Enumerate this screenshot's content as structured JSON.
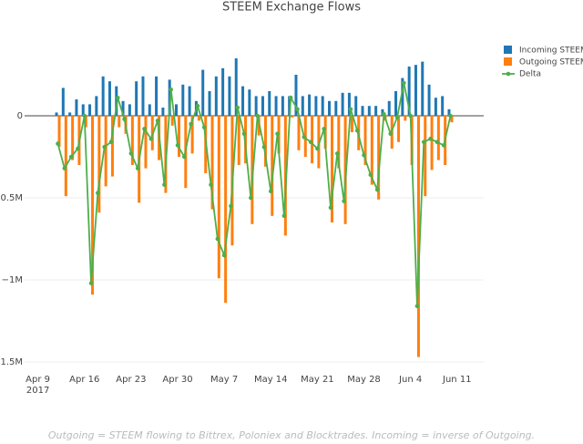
{
  "chart_data": {
    "type": "bar_line",
    "title": "STEEM Exchange Flows",
    "annotation": "Outgoing = STEEM flowing to Bittrex, Poloniex and Blocktrades. Incoming = inverse of Outgoing.",
    "x": [
      "2017-04-12",
      "2017-04-13",
      "2017-04-14",
      "2017-04-15",
      "2017-04-16",
      "2017-04-17",
      "2017-04-18",
      "2017-04-19",
      "2017-04-20",
      "2017-04-21",
      "2017-04-22",
      "2017-04-23",
      "2017-04-24",
      "2017-04-25",
      "2017-04-26",
      "2017-04-27",
      "2017-04-28",
      "2017-04-29",
      "2017-04-30",
      "2017-05-01",
      "2017-05-02",
      "2017-05-03",
      "2017-05-04",
      "2017-05-05",
      "2017-05-06",
      "2017-05-07",
      "2017-05-08",
      "2017-05-09",
      "2017-05-10",
      "2017-05-11",
      "2017-05-12",
      "2017-05-13",
      "2017-05-14",
      "2017-05-15",
      "2017-05-16",
      "2017-05-17",
      "2017-05-18",
      "2017-05-19",
      "2017-05-20",
      "2017-05-21",
      "2017-05-22",
      "2017-05-23",
      "2017-05-24",
      "2017-05-25",
      "2017-05-26",
      "2017-05-27",
      "2017-05-28",
      "2017-05-29",
      "2017-05-30",
      "2017-05-31",
      "2017-06-01",
      "2017-06-02",
      "2017-06-03",
      "2017-06-04",
      "2017-06-05",
      "2017-06-06",
      "2017-06-07",
      "2017-06-08",
      "2017-06-09",
      "2017-06-10"
    ],
    "series": [
      {
        "name": "Incoming STEEM",
        "kind": "bar",
        "color": "#1f77b4",
        "values": [
          20000,
          170000,
          20000,
          100000,
          70000,
          70000,
          120000,
          240000,
          210000,
          180000,
          90000,
          70000,
          210000,
          240000,
          70000,
          240000,
          50000,
          220000,
          70000,
          190000,
          180000,
          90000,
          280000,
          150000,
          240000,
          290000,
          240000,
          350000,
          180000,
          160000,
          120000,
          120000,
          150000,
          120000,
          120000,
          120000,
          250000,
          120000,
          130000,
          120000,
          120000,
          90000,
          90000,
          140000,
          140000,
          120000,
          60000,
          60000,
          60000,
          40000,
          90000,
          150000,
          230000,
          300000,
          310000,
          330000,
          190000,
          110000,
          120000,
          40000
        ]
      },
      {
        "name": "Outgoing STEEM",
        "kind": "bar",
        "color": "#ff7f0e",
        "values": [
          -190000,
          -490000,
          -270000,
          -300000,
          -70000,
          -1090000,
          -590000,
          -430000,
          -370000,
          -70000,
          -110000,
          -300000,
          -530000,
          -320000,
          -210000,
          -270000,
          -470000,
          -60000,
          -250000,
          -440000,
          -230000,
          -30000,
          -350000,
          -570000,
          -990000,
          -1140000,
          -790000,
          -300000,
          -290000,
          -660000,
          -120000,
          -310000,
          -610000,
          -230000,
          -730000,
          -10000,
          -210000,
          -250000,
          -290000,
          -320000,
          -200000,
          -650000,
          -320000,
          -660000,
          -100000,
          -210000,
          -300000,
          -420000,
          -510000,
          -30000,
          -200000,
          -160000,
          -30000,
          -300000,
          -1470000,
          -490000,
          -330000,
          -270000,
          -300000,
          -40000
        ]
      },
      {
        "name": "Delta",
        "kind": "line",
        "color": "#4daf4a",
        "values": [
          -170000,
          -320000,
          -250000,
          -200000,
          0,
          -1020000,
          -470000,
          -190000,
          -160000,
          110000,
          -20000,
          -230000,
          -320000,
          -80000,
          -140000,
          -30000,
          -420000,
          160000,
          -180000,
          -250000,
          -50000,
          60000,
          -70000,
          -420000,
          -750000,
          -850000,
          -550000,
          50000,
          -110000,
          -500000,
          0,
          -190000,
          -460000,
          -110000,
          -610000,
          110000,
          40000,
          -130000,
          -160000,
          -200000,
          -80000,
          -560000,
          -230000,
          -520000,
          40000,
          -90000,
          -240000,
          -360000,
          -450000,
          10000,
          -110000,
          -10000,
          200000,
          0,
          -1160000,
          -160000,
          -140000,
          -160000,
          -180000,
          0
        ]
      }
    ],
    "xlim": [
      "2017-04-07",
      "2017-06-15"
    ],
    "xticks": [
      {
        "value": "2017-04-09",
        "label": "Apr 9\n2017"
      },
      {
        "value": "2017-04-16",
        "label": "Apr 16"
      },
      {
        "value": "2017-04-23",
        "label": "Apr 23"
      },
      {
        "value": "2017-04-30",
        "label": "Apr 30"
      },
      {
        "value": "2017-05-07",
        "label": "May 7"
      },
      {
        "value": "2017-05-14",
        "label": "May 14"
      },
      {
        "value": "2017-05-21",
        "label": "May 21"
      },
      {
        "value": "2017-05-28",
        "label": "May 28"
      },
      {
        "value": "2017-06-04",
        "label": "Jun 4"
      },
      {
        "value": "2017-06-11",
        "label": "Jun 11"
      }
    ],
    "ylim": [
      -1550000,
      450000
    ],
    "yticks": [
      0,
      {
        "value": -500000,
        "label": "−0.5M"
      },
      {
        "value": -1000000,
        "label": "−1M"
      },
      {
        "value": -1500000,
        "label": "−1.5M"
      }
    ],
    "grid": true,
    "legend": "top-right"
  }
}
